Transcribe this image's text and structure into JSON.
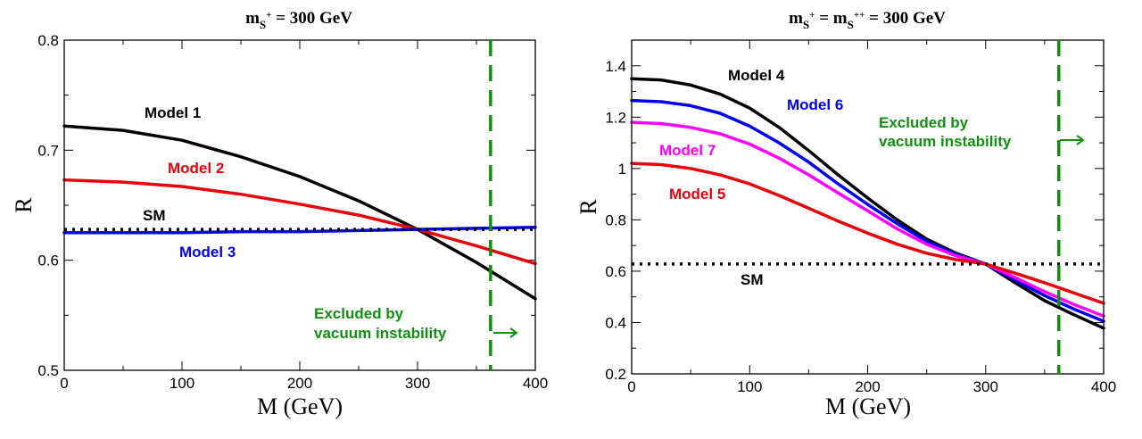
{
  "chart_data": [
    {
      "type": "line",
      "title": "m_{S+} = 300 GeV",
      "title_parts": {
        "m": "m",
        "sub": "S",
        "sup": "+",
        "rest": " = 300 GeV"
      },
      "xlabel": "M (GeV)",
      "ylabel": "R",
      "xlim": [
        0,
        400
      ],
      "ylim": [
        0.5,
        0.8
      ],
      "xticks": [
        0,
        100,
        200,
        300,
        400
      ],
      "yticks": [
        0.5,
        0.6,
        0.7,
        0.8
      ],
      "grid": false,
      "series": [
        {
          "name": "Model 1",
          "color": "#000000",
          "style": "solid",
          "x": [
            0,
            50,
            100,
            150,
            200,
            250,
            300,
            350,
            400
          ],
          "y": [
            0.722,
            0.718,
            0.709,
            0.694,
            0.676,
            0.654,
            0.628,
            0.598,
            0.565
          ]
        },
        {
          "name": "Model 2",
          "color": "#e8000b",
          "style": "solid",
          "x": [
            0,
            50,
            100,
            150,
            200,
            250,
            300,
            350,
            400
          ],
          "y": [
            0.673,
            0.671,
            0.667,
            0.66,
            0.651,
            0.641,
            0.628,
            0.613,
            0.597
          ]
        },
        {
          "name": "Model 3",
          "color": "#0000ee",
          "style": "solid",
          "x": [
            0,
            50,
            100,
            150,
            200,
            250,
            300,
            350,
            400
          ],
          "y": [
            0.625,
            0.625,
            0.625,
            0.626,
            0.626,
            0.627,
            0.628,
            0.629,
            0.63
          ]
        },
        {
          "name": "SM",
          "color": "#000000",
          "style": "dotted",
          "x": [
            0,
            400
          ],
          "y": [
            0.628,
            0.628
          ]
        }
      ],
      "annotations": [
        {
          "text": "Excluded by",
          "color": "#109010"
        },
        {
          "text": "vacuum instability",
          "color": "#109010"
        }
      ],
      "exclusion_line_x": 362,
      "exclusion_color": "#109010"
    },
    {
      "type": "line",
      "title": "m_{S+} = m_{S++} = 300 GeV",
      "title_parts": {
        "m1": "m",
        "sub1": "S",
        "sup1": "+",
        "eq": " = ",
        "m2": "m",
        "sub2": "S",
        "sup2": "++",
        "rest": " = 300 GeV"
      },
      "xlabel": "M (GeV)",
      "ylabel": "R",
      "xlim": [
        0,
        400
      ],
      "ylim": [
        0.2,
        1.5
      ],
      "xticks": [
        0,
        100,
        200,
        300,
        400
      ],
      "yticks": [
        0.2,
        0.4,
        0.6,
        0.8,
        1,
        1.2,
        1.4
      ],
      "grid": false,
      "series": [
        {
          "name": "Model 4",
          "color": "#000000",
          "style": "solid",
          "x": [
            0,
            25,
            50,
            75,
            100,
            125,
            150,
            175,
            200,
            225,
            250,
            275,
            300,
            325,
            350,
            375,
            400
          ],
          "y": [
            1.35,
            1.345,
            1.325,
            1.29,
            1.235,
            1.16,
            1.07,
            0.975,
            0.885,
            0.8,
            0.725,
            0.67,
            0.628,
            0.555,
            0.485,
            0.43,
            0.378
          ]
        },
        {
          "name": "Model 6",
          "color": "#0000ee",
          "style": "solid",
          "x": [
            0,
            25,
            50,
            75,
            100,
            125,
            150,
            175,
            200,
            225,
            250,
            275,
            300,
            325,
            350,
            375,
            400
          ],
          "y": [
            1.265,
            1.26,
            1.245,
            1.215,
            1.165,
            1.1,
            1.025,
            0.94,
            0.86,
            0.785,
            0.717,
            0.665,
            0.628,
            0.565,
            0.505,
            0.452,
            0.405
          ]
        },
        {
          "name": "Model 7",
          "color": "#ff00ff",
          "style": "solid",
          "x": [
            0,
            25,
            50,
            75,
            100,
            125,
            150,
            175,
            200,
            225,
            250,
            275,
            300,
            325,
            350,
            375,
            400
          ],
          "y": [
            1.18,
            1.175,
            1.16,
            1.135,
            1.095,
            1.04,
            0.975,
            0.905,
            0.835,
            0.765,
            0.705,
            0.66,
            0.628,
            0.575,
            0.52,
            0.47,
            0.425
          ]
        },
        {
          "name": "Model 5",
          "color": "#e8000b",
          "style": "solid",
          "x": [
            0,
            25,
            50,
            75,
            100,
            125,
            150,
            175,
            200,
            225,
            250,
            275,
            300,
            325,
            350,
            375,
            400
          ],
          "y": [
            1.02,
            1.015,
            1.0,
            0.975,
            0.94,
            0.895,
            0.845,
            0.795,
            0.748,
            0.705,
            0.67,
            0.645,
            0.628,
            0.592,
            0.555,
            0.515,
            0.475
          ]
        },
        {
          "name": "SM",
          "color": "#000000",
          "style": "dotted",
          "x": [
            0,
            400
          ],
          "y": [
            0.628,
            0.628
          ]
        }
      ],
      "annotations": [
        {
          "text": "Excluded by",
          "color": "#109010"
        },
        {
          "text": "vacuum instability",
          "color": "#109010"
        }
      ],
      "exclusion_line_x": 362,
      "exclusion_color": "#109010"
    }
  ]
}
